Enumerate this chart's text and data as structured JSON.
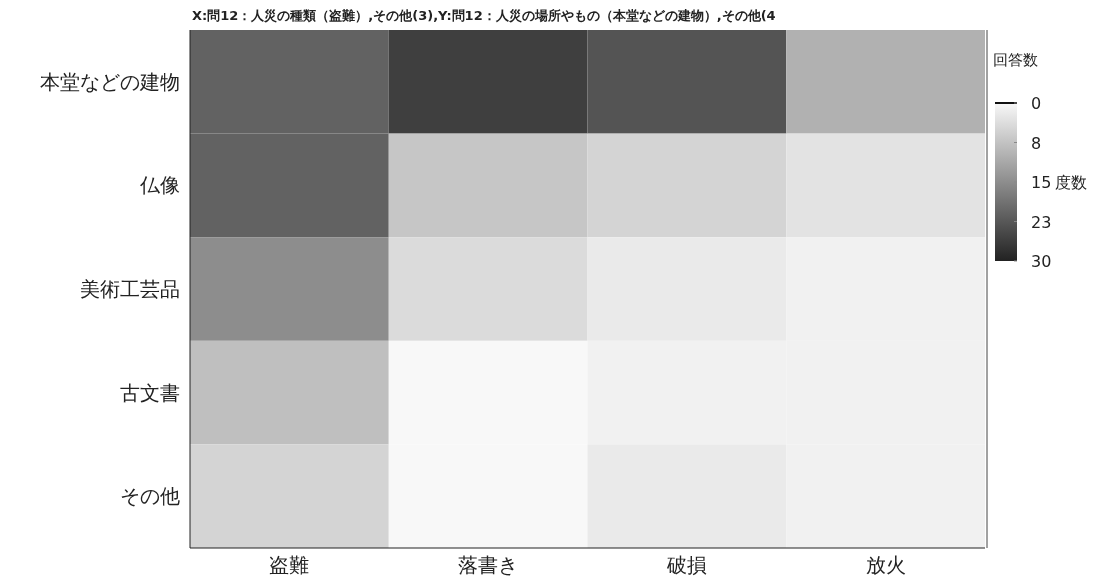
{
  "chart_data": {
    "type": "heatmap",
    "title": "X:問12：人災の種類（盗難）,その他(3),Y:問12：人災の場所やもの（本堂などの建物）,その他(4",
    "categories": [
      "盗難",
      "落書き",
      "破損",
      "放火"
    ],
    "y_categories": [
      "本堂などの建物",
      "仏像",
      "美術工芸品",
      "古文書",
      "その他"
    ],
    "cells": [
      [
        21,
        26,
        23,
        10
      ],
      [
        21,
        7,
        5,
        3
      ],
      [
        15,
        4,
        2,
        1
      ],
      [
        8,
        0,
        1,
        1
      ],
      [
        5,
        0,
        2,
        1
      ]
    ],
    "clim": [
      0,
      30
    ],
    "cticks": [
      0,
      {
        "value": 7.5,
        "label": "8"
      },
      15,
      {
        "value": 22.5,
        "label": "23"
      },
      30
    ],
    "clabel": "回答数",
    "annotations": [
      "度数"
    ]
  }
}
